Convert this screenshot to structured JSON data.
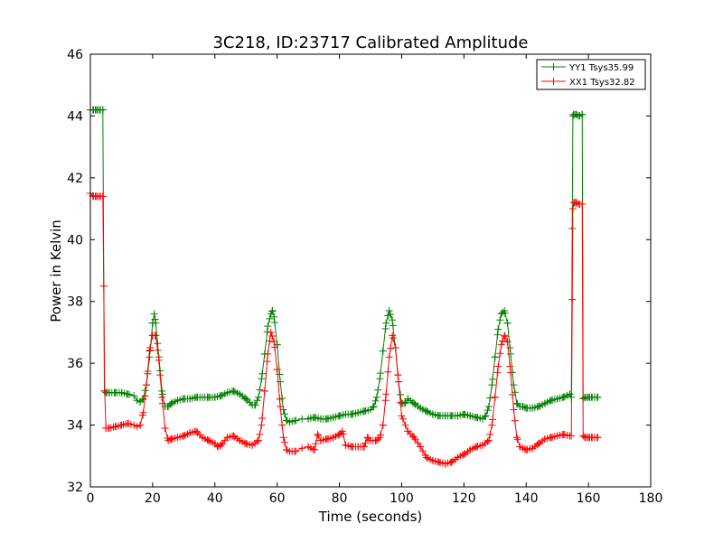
{
  "chart_data": {
    "type": "line",
    "title": "3C218, ID:23717 Calibrated Amplitude",
    "xlabel": "Time (seconds)",
    "ylabel": "Power in Kelvin",
    "xlim": [
      0,
      180
    ],
    "ylim": [
      32,
      46
    ],
    "xticks": [
      "0",
      "20",
      "40",
      "60",
      "80",
      "100",
      "120",
      "140",
      "160",
      "180"
    ],
    "yticks": [
      "32",
      "34",
      "36",
      "38",
      "40",
      "42",
      "44",
      "46"
    ],
    "grid": false,
    "legend_position": "top-right",
    "marker": "+",
    "series": [
      {
        "name": "YY1 Tsys35.99",
        "color": "#008000",
        "x": [
          0,
          1,
          2,
          3,
          4,
          4.5,
          5,
          6,
          8,
          10,
          12,
          14,
          15,
          16,
          17,
          18,
          19,
          20,
          20.5,
          21,
          22,
          23,
          24,
          25,
          26,
          28,
          30,
          32,
          34,
          36,
          38,
          40,
          42,
          44,
          46,
          48,
          50,
          52,
          53,
          54,
          55,
          56,
          57,
          58,
          58.5,
          59,
          60,
          61,
          62,
          63,
          64,
          66,
          68,
          70,
          72,
          74,
          76,
          78,
          80,
          82,
          84,
          86,
          88,
          90,
          91,
          92,
          93,
          94,
          95,
          96,
          97,
          98,
          99,
          100,
          101,
          102,
          104,
          106,
          108,
          110,
          112,
          114,
          116,
          118,
          120,
          122,
          124,
          126,
          127,
          128,
          129,
          130,
          131,
          132,
          133,
          134,
          135,
          136,
          137,
          138,
          139,
          140,
          142,
          144,
          146,
          148,
          150,
          152,
          154,
          154.5,
          155,
          155.2,
          156,
          157,
          158,
          158.3,
          159,
          160,
          161,
          162,
          163
        ],
        "values": [
          44.2,
          44.2,
          44.2,
          44.2,
          44.2,
          35.1,
          35.05,
          35.05,
          35.05,
          35.05,
          35.0,
          34.95,
          34.8,
          34.75,
          34.85,
          35.3,
          36.2,
          37.3,
          37.6,
          37.3,
          36.2,
          35.1,
          34.6,
          34.6,
          34.7,
          34.8,
          34.85,
          34.85,
          34.9,
          34.9,
          34.9,
          34.9,
          34.95,
          35.05,
          35.1,
          35.0,
          34.85,
          34.65,
          34.65,
          34.9,
          35.5,
          36.3,
          37.2,
          37.6,
          37.7,
          37.5,
          36.6,
          35.4,
          34.5,
          34.15,
          34.1,
          34.15,
          34.2,
          34.2,
          34.25,
          34.2,
          34.2,
          34.25,
          34.3,
          34.35,
          34.35,
          34.4,
          34.45,
          34.5,
          34.6,
          34.9,
          35.5,
          36.4,
          37.3,
          37.7,
          37.4,
          36.5,
          35.4,
          34.7,
          34.7,
          34.85,
          34.7,
          34.55,
          34.45,
          34.35,
          34.3,
          34.3,
          34.3,
          34.3,
          34.35,
          34.3,
          34.25,
          34.2,
          34.3,
          34.6,
          35.3,
          36.2,
          37.1,
          37.6,
          37.7,
          37.3,
          36.3,
          35.3,
          34.7,
          34.6,
          34.6,
          34.55,
          34.55,
          34.6,
          34.7,
          34.8,
          34.85,
          34.9,
          35.0,
          34.9,
          44.0,
          44.05,
          44.05,
          44.0,
          44.05,
          34.85,
          34.9,
          34.9,
          34.9,
          34.9,
          34.9
        ],
        "dense_marker_ranges": [
          [
            0,
            4
          ],
          [
            4.5,
            13
          ],
          [
            16,
            66
          ],
          [
            70,
            163
          ]
        ]
      },
      {
        "name": "XX1 Tsys32.82",
        "color": "#ff0000",
        "x": [
          0,
          1,
          2,
          3,
          4,
          4.3,
          4.6,
          5,
          6,
          8,
          10,
          12,
          14,
          15,
          16,
          17,
          18,
          19,
          20,
          21,
          22,
          23,
          24,
          25,
          26,
          28,
          30,
          32,
          34,
          36,
          38,
          40,
          41,
          42,
          44,
          46,
          48,
          50,
          52,
          54,
          55,
          56,
          57,
          58,
          59,
          60,
          61,
          62,
          63,
          64,
          66,
          68,
          70,
          72,
          73,
          74,
          76,
          78,
          80,
          81,
          82,
          84,
          86,
          88,
          89,
          90,
          92,
          93,
          94,
          95,
          96,
          97,
          98,
          99,
          100,
          102,
          104,
          106,
          108,
          110,
          112,
          114,
          116,
          118,
          120,
          122,
          124,
          126,
          128,
          129,
          130,
          131,
          132,
          133,
          134,
          135,
          136,
          137,
          138,
          140,
          142,
          144,
          146,
          148,
          150,
          152,
          154,
          154.5,
          155,
          155.3,
          156,
          157,
          158,
          158.3,
          159,
          160,
          161,
          162,
          163
        ],
        "values": [
          41.5,
          41.4,
          41.4,
          41.4,
          41.4,
          38.5,
          35.1,
          33.9,
          33.9,
          33.95,
          34.0,
          34.05,
          34.0,
          33.95,
          34.0,
          34.4,
          35.3,
          36.4,
          36.9,
          36.9,
          36.1,
          34.9,
          33.9,
          33.5,
          33.55,
          33.6,
          33.65,
          33.75,
          33.8,
          33.6,
          33.5,
          33.4,
          33.3,
          33.35,
          33.6,
          33.65,
          33.5,
          33.4,
          33.35,
          33.5,
          34.0,
          35.1,
          36.3,
          37.0,
          36.7,
          35.8,
          34.6,
          33.6,
          33.2,
          33.15,
          33.15,
          33.25,
          33.3,
          33.2,
          33.7,
          33.5,
          33.55,
          33.6,
          33.7,
          33.8,
          33.35,
          33.3,
          33.3,
          33.3,
          33.6,
          33.5,
          33.5,
          33.6,
          34.0,
          35.0,
          36.2,
          36.9,
          36.5,
          35.4,
          34.3,
          33.8,
          33.6,
          33.3,
          32.95,
          32.85,
          32.8,
          32.75,
          32.8,
          32.95,
          33.05,
          33.2,
          33.3,
          33.35,
          33.5,
          34.0,
          34.9,
          35.9,
          36.6,
          36.9,
          36.7,
          35.7,
          34.5,
          33.6,
          33.3,
          33.2,
          33.25,
          33.4,
          33.55,
          33.6,
          33.65,
          33.7,
          33.65,
          33.65,
          41.0,
          41.2,
          41.2,
          41.15,
          41.15,
          33.65,
          33.6,
          33.6,
          33.6,
          33.6,
          33.6
        ],
        "dense_marker_ranges": [
          [
            0,
            4
          ],
          [
            5,
            13
          ],
          [
            16,
            66
          ],
          [
            70,
            163
          ]
        ]
      }
    ]
  }
}
